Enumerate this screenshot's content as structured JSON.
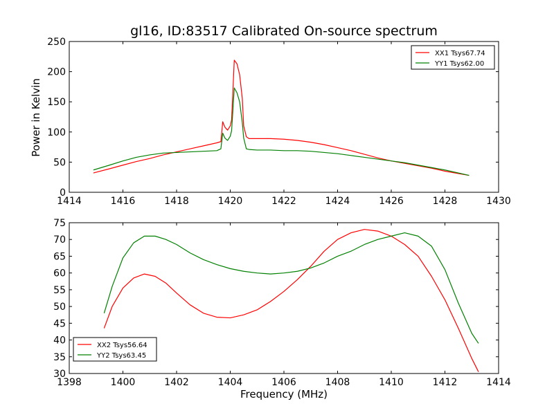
{
  "figure": {
    "title": "gl16, ID:83517 Calibrated On-source spectrum",
    "xlabel": "Frequency (MHz)",
    "ylabel": "Power in Kelvin"
  },
  "chart_data": [
    {
      "type": "line",
      "title": "gl16, ID:83517 Calibrated On-source spectrum",
      "xlabel": "",
      "ylabel": "Power in Kelvin",
      "xlim": [
        1414,
        1430
      ],
      "ylim": [
        0,
        250
      ],
      "xticks": [
        1414,
        1416,
        1418,
        1420,
        1422,
        1424,
        1426,
        1428,
        1430
      ],
      "yticks": [
        0,
        50,
        100,
        150,
        200,
        250
      ],
      "legend_position": "top-right",
      "grid": false,
      "series": [
        {
          "name": "XX1 Tsys67.74",
          "color": "#ff0000",
          "x": [
            1414.9,
            1415.5,
            1416.0,
            1416.5,
            1417.0,
            1417.5,
            1418.0,
            1418.5,
            1419.0,
            1419.5,
            1419.65,
            1419.72,
            1419.8,
            1419.9,
            1420.0,
            1420.05,
            1420.15,
            1420.25,
            1420.35,
            1420.45,
            1420.5,
            1420.6,
            1420.7,
            1421.0,
            1421.5,
            1422.0,
            1422.5,
            1423.0,
            1423.5,
            1424.0,
            1424.5,
            1425.0,
            1425.5,
            1426.0,
            1426.5,
            1427.0,
            1427.5,
            1428.0,
            1428.5,
            1428.9
          ],
          "values": [
            32,
            39,
            45,
            51,
            56,
            62,
            67,
            72,
            77,
            82,
            84,
            117,
            108,
            103,
            110,
            120,
            219,
            213,
            195,
            155,
            110,
            92,
            89,
            89,
            89,
            88,
            86,
            83,
            79,
            74,
            69,
            63,
            57,
            52,
            48,
            44,
            40,
            35,
            31,
            28
          ]
        },
        {
          "name": "YY1 Tsys62.00",
          "color": "#008000",
          "x": [
            1414.9,
            1415.5,
            1416.0,
            1416.5,
            1417.0,
            1417.5,
            1418.0,
            1418.5,
            1419.0,
            1419.5,
            1419.65,
            1419.72,
            1419.8,
            1419.9,
            1420.0,
            1420.05,
            1420.15,
            1420.25,
            1420.35,
            1420.45,
            1420.5,
            1420.6,
            1420.7,
            1421.0,
            1421.5,
            1422.0,
            1422.5,
            1423.0,
            1423.5,
            1424.0,
            1424.5,
            1425.0,
            1425.5,
            1426.0,
            1426.5,
            1427.0,
            1427.5,
            1428.0,
            1428.5,
            1428.9
          ],
          "values": [
            37,
            45,
            52,
            58,
            62,
            65,
            66,
            67,
            68,
            69,
            72,
            98,
            90,
            86,
            93,
            102,
            173,
            165,
            150,
            115,
            90,
            72,
            71,
            70,
            70,
            69,
            69,
            68,
            66,
            64,
            61,
            58,
            55,
            52,
            49,
            45,
            41,
            37,
            32,
            28
          ]
        }
      ]
    },
    {
      "type": "line",
      "title": "",
      "xlabel": "Frequency (MHz)",
      "ylabel": "",
      "xlim": [
        1398,
        1414
      ],
      "ylim": [
        30,
        75
      ],
      "xticks": [
        1398,
        1400,
        1402,
        1404,
        1406,
        1408,
        1410,
        1412,
        1414
      ],
      "yticks": [
        30,
        35,
        40,
        45,
        50,
        55,
        60,
        65,
        70,
        75
      ],
      "legend_position": "bottom-left",
      "grid": false,
      "series": [
        {
          "name": "XX2 Tsys56.64",
          "color": "#ff0000",
          "x": [
            1399.3,
            1399.6,
            1400.0,
            1400.4,
            1400.8,
            1401.2,
            1401.6,
            1402.0,
            1402.5,
            1403.0,
            1403.5,
            1404.0,
            1404.5,
            1405.0,
            1405.5,
            1406.0,
            1406.5,
            1407.0,
            1407.5,
            1408.0,
            1408.5,
            1409.0,
            1409.5,
            1410.0,
            1410.5,
            1411.0,
            1411.5,
            1412.0,
            1412.5,
            1413.0,
            1413.25
          ],
          "values": [
            43.5,
            50,
            55.5,
            58.5,
            59.7,
            59,
            57,
            54,
            50.5,
            48,
            46.8,
            46.6,
            47.5,
            49,
            51.5,
            54.5,
            58,
            62,
            66.5,
            70,
            72,
            73,
            72.5,
            71,
            68.5,
            65,
            59,
            52,
            43.5,
            34.5,
            30.5
          ]
        },
        {
          "name": "YY2 Tsys63.45",
          "color": "#008000",
          "x": [
            1399.3,
            1399.6,
            1400.0,
            1400.4,
            1400.8,
            1401.2,
            1401.6,
            1402.0,
            1402.5,
            1403.0,
            1403.5,
            1404.0,
            1404.5,
            1405.0,
            1405.5,
            1406.0,
            1406.5,
            1407.0,
            1407.5,
            1408.0,
            1408.5,
            1409.0,
            1409.5,
            1410.0,
            1410.5,
            1411.0,
            1411.5,
            1412.0,
            1412.5,
            1413.0,
            1413.25
          ],
          "values": [
            48,
            56,
            64.5,
            69,
            71,
            71,
            70,
            68.5,
            66,
            64,
            62.5,
            61.3,
            60.5,
            60,
            59.7,
            60,
            60.5,
            61.5,
            63,
            65,
            66.5,
            68.5,
            70,
            71,
            72,
            71,
            68,
            61,
            51,
            42,
            39
          ]
        }
      ]
    }
  ]
}
